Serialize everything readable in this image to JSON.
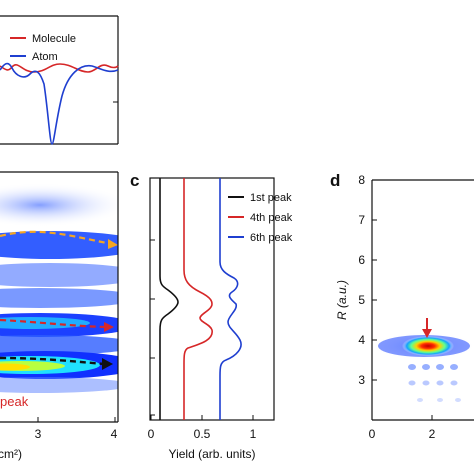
{
  "panel_c": {
    "label": "c"
  },
  "panel_d": {
    "label": "d"
  },
  "panel_b": {
    "partial_xlabel": "cm²)",
    "peak_text": "peak"
  },
  "chart_data": [
    {
      "panel": "a (top, partial)",
      "type": "line",
      "series": [
        {
          "name": "Molecule",
          "color": "#d62728",
          "x": [
            0,
            0.5,
            1,
            1.5,
            2,
            2.5,
            3,
            3.5,
            4
          ],
          "y": [
            0.1,
            -0.05,
            0.08,
            -0.06,
            0.06,
            -0.05,
            0.04,
            -0.03,
            0.05
          ]
        },
        {
          "name": "Atom",
          "color": "#1f3fd0",
          "x": [
            0,
            0.5,
            1,
            1.5,
            2,
            2.5,
            3,
            3.5,
            4
          ],
          "y": [
            0.1,
            -0.2,
            0.1,
            0.05,
            -1.0,
            0.05,
            -0.05,
            0.1,
            0.0
          ]
        }
      ],
      "legend_position": "top-right"
    },
    {
      "panel": "b (partial heatmap)",
      "type": "heatmap",
      "xticks": [
        "3",
        "4"
      ],
      "xlabel": "cm²)",
      "annotation": "peak"
    },
    {
      "panel": "c",
      "type": "line",
      "xlabel": "Yield (arb. units)",
      "xticks": [
        "0",
        "0.5",
        "1"
      ],
      "xlim": [
        0,
        1.15
      ],
      "series": [
        {
          "name": "1st peak",
          "color": "#111111"
        },
        {
          "name": "4th peak",
          "color": "#d62728"
        },
        {
          "name": "6th peak",
          "color": "#1f3fd0"
        }
      ],
      "legend_position": "top-right"
    },
    {
      "panel": "d",
      "type": "heatmap",
      "ylabel": "R (a.u.)",
      "yticks": [
        "3",
        "4",
        "5",
        "6",
        "7",
        "8"
      ],
      "ylim": [
        2.9,
        8.1
      ],
      "xticks": [
        "0",
        "2"
      ],
      "peak": {
        "x": 2.6,
        "y": 3.85
      }
    }
  ]
}
